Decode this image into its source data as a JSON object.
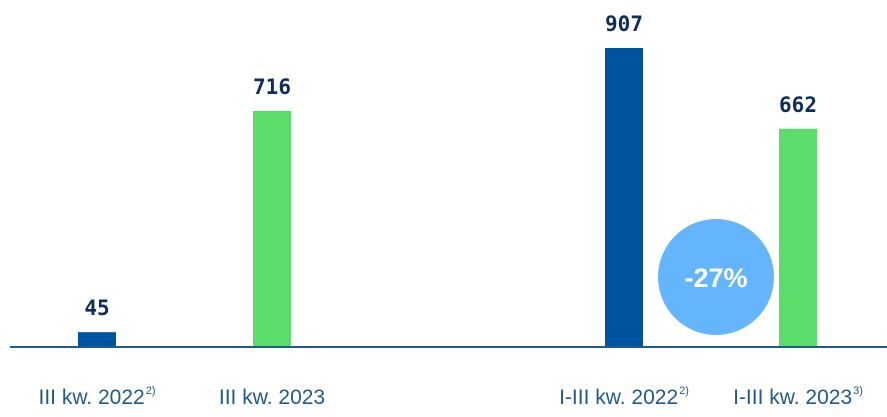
{
  "colors": {
    "series_2022": "#00539f",
    "series_2023": "#5cdd6b",
    "axis": "#1f5a8a",
    "value_text": "#0d2d5c",
    "category_text": "#1f5a8a",
    "badge_fill": "#64b5fb",
    "badge_text": "#ffffff"
  },
  "chart_data": {
    "type": "bar",
    "categories": [
      {
        "label": "III kw. 2022",
        "sup": "2)"
      },
      {
        "label": "III kw. 2023",
        "sup": ""
      },
      {
        "label": "I-III kw. 2022",
        "sup": "2)"
      },
      {
        "label": "I-III kw. 2023",
        "sup": "3)"
      }
    ],
    "values": [
      45,
      716,
      907,
      662
    ],
    "data_labels": [
      "45",
      "716",
      "907",
      "662"
    ],
    "bar_colors": [
      "#00539f",
      "#5cdd6b",
      "#00539f",
      "#5cdd6b"
    ],
    "ylim": [
      0,
      907
    ],
    "grid": false,
    "legend": "none",
    "annotations": [
      {
        "text": "-27%",
        "shape": "circle",
        "between_categories": [
          2,
          3
        ]
      }
    ],
    "title": "",
    "xlabel": "",
    "ylabel": ""
  }
}
